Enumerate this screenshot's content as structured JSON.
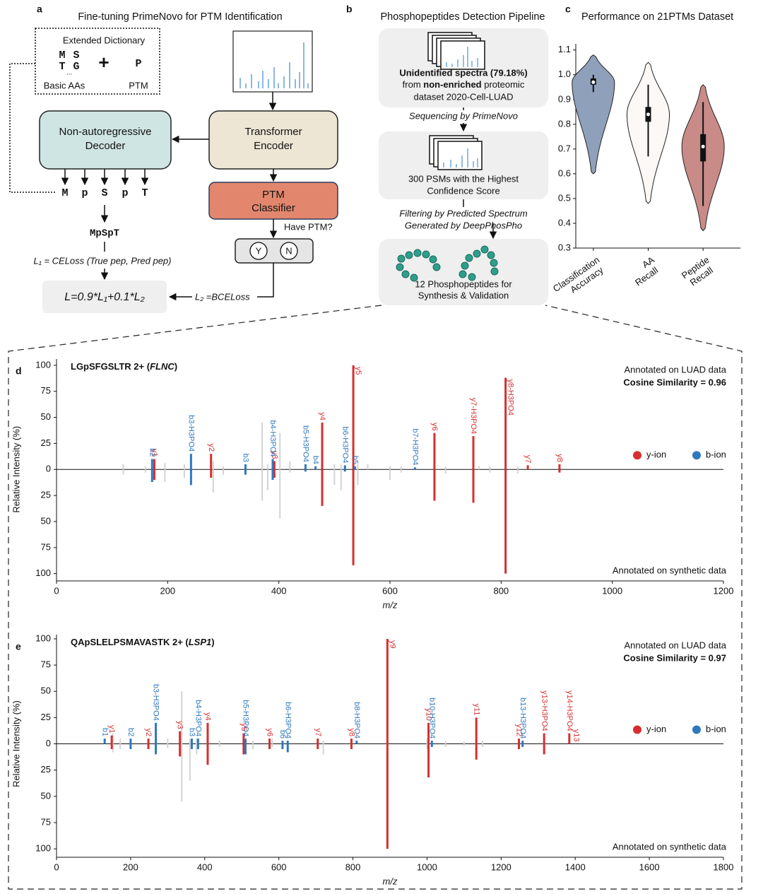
{
  "panel_a": {
    "letter": "a",
    "title": "Fine-tuning PrimeNovo for PTM Identification",
    "dictionary_title": "Extended Dictionary",
    "basic_aas": [
      "M",
      "S",
      "T",
      "G"
    ],
    "ellipsis": "...",
    "plus": "+",
    "ptm_token": "P",
    "basic_label": "Basic AAs",
    "ptm_label": "PTM",
    "decoder": [
      "Non-autoregressive",
      "Decoder"
    ],
    "encoder": [
      "Transformer",
      "Encoder"
    ],
    "classifier": [
      "PTM",
      "Classifier"
    ],
    "question": "Have PTM?",
    "yes": "Y",
    "no": "N",
    "tokens": [
      "M",
      "p",
      "S",
      "p",
      "T"
    ],
    "peptide": "MpSpT",
    "loss1": "L₁ = CELoss (True pep, Pred pep)",
    "loss": "L=0.9*L₁+0.1*L₂",
    "loss2": "L₂ =BCELoss"
  },
  "panel_b": {
    "letter": "b",
    "title": "Phosphopeptides Detection Pipeline",
    "box1": [
      [
        "Unidentified spectra (79.18%)"
      ],
      [
        "from ",
        "non-enriched",
        " proteomic"
      ],
      [
        "dataset 2020-Cell-LUAD"
      ]
    ],
    "step1": "Sequencing by PrimeNovo",
    "box2": [
      "300 PSMs with the Highest",
      "Confidence Score"
    ],
    "step2": [
      "Filtering by Predicted Spectrum",
      "Generated by DeepPhosPho"
    ],
    "box3": [
      "12 Phosphopeptides for",
      "Synthesis & Validation"
    ]
  },
  "chart_data": [
    {
      "type": "violin",
      "panel": "c",
      "title": "Performance on 21PTMs Dataset",
      "categories": [
        "Classification Accuracy",
        "AA Recall",
        "Peptide Recall"
      ],
      "ylim": [
        0.3,
        1.125
      ],
      "yticks": [
        0.3,
        0.4,
        0.5,
        0.6,
        0.7,
        0.8,
        0.9,
        {
          "value": 1,
          "label": "1.0"
        },
        1.1
      ],
      "violins": [
        {
          "color": "#8fa0bb",
          "min": 0.6,
          "max": 1.08,
          "q1": 0.96,
          "median": 0.97,
          "q3": 0.985,
          "whisker_low": 0.93,
          "whisker_high": 1.0
        },
        {
          "color": "#fbf8f6",
          "min": 0.48,
          "max": 1.05,
          "q1": 0.81,
          "median": 0.84,
          "q3": 0.87,
          "whisker_low": 0.67,
          "whisker_high": 0.96
        },
        {
          "color": "#c98b88",
          "min": 0.37,
          "max": 0.96,
          "q1": 0.65,
          "median": 0.71,
          "q3": 0.76,
          "whisker_low": 0.47,
          "whisker_high": 0.89
        }
      ]
    },
    {
      "type": "mirror-spectrum",
      "panel": "d",
      "title_parts": [
        "LGpSFGSLTR 2+ (",
        "FLNC",
        ")"
      ],
      "annotation_top": "Annotated on LUAD data",
      "similarity": "Cosine Similarity = 0.96",
      "annotation_bottom": "Annotated on synthetic data",
      "xlabel": "m/z",
      "ylabel": "Relative Intensity (%)",
      "xlim": [
        0,
        1200
      ],
      "xticks": [
        0,
        200,
        400,
        600,
        800,
        1000,
        1200
      ],
      "ylim": [
        -107,
        106
      ],
      "yticks": [
        100,
        75,
        50,
        25,
        0,
        {
          "value": -25,
          "label": "25"
        },
        {
          "value": -50,
          "label": "50"
        },
        {
          "value": -75,
          "label": "75"
        },
        {
          "value": -100,
          "label": "100"
        }
      ],
      "series": [
        {
          "color": "#d3d3d3",
          "x": [
            120,
            160,
            195,
            230,
            282,
            300,
            370,
            380,
            402,
            420,
            500,
            512,
            542,
            560,
            600,
            620,
            700,
            760,
            780,
            830
          ],
          "top": [
            5,
            3,
            6,
            5,
            8,
            3,
            45,
            5,
            35,
            8,
            5,
            5,
            5,
            5,
            3,
            3,
            3,
            3,
            3,
            3
          ],
          "bottom": [
            5,
            3,
            12,
            8,
            22,
            5,
            30,
            20,
            47,
            3,
            15,
            20,
            15,
            0,
            10,
            3,
            4,
            0,
            3,
            4
          ]
        },
        {
          "name": "y-ion",
          "color": "#d62f2f",
          "labels": [
            "y1",
            "y2",
            "y3",
            "y4",
            "y5",
            "y6",
            "y7-H3PO4",
            "y8-H3PO4",
            "y7",
            "y8"
          ],
          "x": [
            176,
            278,
            392,
            478,
            534,
            680,
            750,
            808,
            848,
            905
          ],
          "top": [
            10,
            15,
            8,
            45,
            100,
            35,
            32,
            88,
            4,
            5
          ],
          "bottom": [
            10,
            8,
            8,
            35,
            92,
            30,
            32,
            100,
            0,
            3
          ]
        },
        {
          "name": "b-ion",
          "color": "#2f78c0",
          "labels": [
            "b2",
            "b3-H3PO4",
            "b3",
            "b4-H3PO4",
            "b5-H3PO4",
            "b4",
            "b6-H3PO4",
            "b5",
            "b7-H3PO4"
          ],
          "x": [
            172,
            242,
            340,
            389,
            448,
            466,
            519,
            537,
            645
          ],
          "top": [
            10,
            15,
            5,
            10,
            5,
            3,
            4,
            3,
            2
          ],
          "bottom": [
            12,
            15,
            5,
            10,
            2,
            0,
            2,
            0,
            0
          ]
        }
      ]
    },
    {
      "type": "mirror-spectrum",
      "panel": "e",
      "title_parts": [
        "QApSLELPSMAVASTK 2+ (",
        "LSP1",
        ")"
      ],
      "annotation_top": "Annotated on LUAD data",
      "similarity": "Cosine Similarity = 0.97",
      "annotation_bottom": "Annotated on synthetic data",
      "xlabel": "m/z",
      "ylabel": "Relative Intensity (%)",
      "xlim": [
        0,
        1800
      ],
      "xticks": [
        0,
        200,
        400,
        600,
        800,
        1000,
        1200,
        1400,
        1600,
        1800
      ],
      "ylim": [
        -108,
        104
      ],
      "yticks": [
        100,
        75,
        50,
        25,
        0,
        {
          "value": -25,
          "label": "25"
        },
        {
          "value": -50,
          "label": "50"
        },
        {
          "value": -75,
          "label": "75"
        },
        {
          "value": -100,
          "label": "100"
        }
      ],
      "series": [
        {
          "color": "#d3d3d3",
          "x": [
            152,
            172,
            300,
            338,
            360,
            378,
            440,
            530,
            582,
            720,
            1000,
            1050,
            1100,
            1150
          ],
          "top": [
            10,
            5,
            5,
            50,
            5,
            5,
            3,
            3,
            5,
            3,
            5,
            3,
            2,
            3
          ],
          "bottom": [
            8,
            5,
            4,
            55,
            35,
            10,
            3,
            5,
            3,
            10,
            5,
            3,
            2,
            3
          ]
        },
        {
          "name": "y-ion",
          "color": "#d62f2f",
          "labels": [
            "y1",
            "y2",
            "y3",
            "y4",
            "y5",
            "y6",
            "y7",
            "y8",
            "y9",
            "y10",
            "y11",
            "y12",
            "y13-H3PO4",
            "y14-H3PO4",
            "y13"
          ],
          "x": [
            149,
            248,
            333,
            408,
            505,
            575,
            705,
            796,
            893,
            1004,
            1133,
            1248,
            1316,
            1384,
            1402
          ],
          "top": [
            8,
            5,
            12,
            20,
            10,
            5,
            5,
            5,
            100,
            20,
            25,
            5,
            10,
            10,
            0
          ],
          "bottom": [
            5,
            5,
            12,
            20,
            10,
            5,
            5,
            5,
            100,
            32,
            15,
            5,
            10,
            0,
            0
          ]
        },
        {
          "name": "b-ion",
          "color": "#2f78c0",
          "labels": [
            "b1",
            "b2",
            "b3-H3PO4",
            "b3",
            "b4-H3PO4",
            "b5-H3PO4",
            "b6",
            "b6-H3PO4",
            "b8-H3PO4",
            "b10-H3PO4",
            "b13-H3PO4"
          ],
          "x": [
            130,
            200,
            268,
            365,
            382,
            510,
            610,
            624,
            810,
            1013,
            1258
          ],
          "top": [
            5,
            5,
            20,
            5,
            5,
            5,
            3,
            3,
            3,
            3,
            3
          ],
          "bottom": [
            0,
            5,
            10,
            5,
            5,
            10,
            5,
            8,
            0,
            3,
            3
          ]
        }
      ]
    }
  ]
}
